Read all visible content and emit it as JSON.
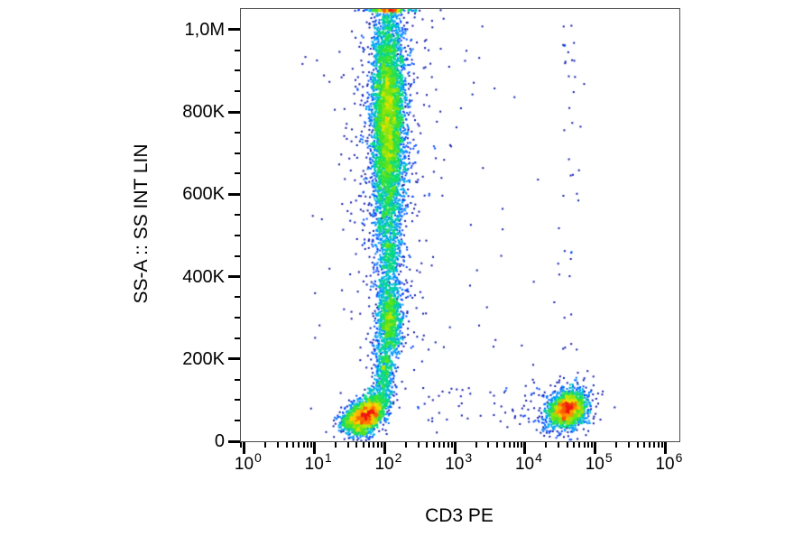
{
  "figure": {
    "background": "#ffffff",
    "plot_border_color": "#4d4d4d",
    "tick_color": "#000000",
    "text_color": "#000000"
  },
  "chart_data": {
    "type": "scatter",
    "subtype": "flow-cytometry-pseudocolor-density-plot",
    "title": "",
    "xlabel": "CD3 PE",
    "ylabel": "SS-A :: SS INT LIN",
    "x_scale": "log10",
    "y_scale": "linear",
    "x_range_log10": [
      -0.05,
      6.2
    ],
    "y_range": [
      0,
      1050000
    ],
    "x_ticks": {
      "base": "10",
      "exponents": [
        0,
        1,
        2,
        3,
        4,
        5,
        6
      ]
    },
    "x_minor_mantissas": [
      2,
      3,
      4,
      5,
      6,
      7,
      8,
      9
    ],
    "y_ticks": [
      {
        "value": 0,
        "label": "0"
      },
      {
        "value": 200000,
        "label": "200K"
      },
      {
        "value": 400000,
        "label": "400K"
      },
      {
        "value": 600000,
        "label": "600K"
      },
      {
        "value": 800000,
        "label": "800K"
      },
      {
        "value": 1000000,
        "label": "1,0M"
      }
    ],
    "y_minor_step": 50000,
    "legend": "none",
    "grid": "off",
    "colormap": [
      {
        "t": 0.0,
        "rgb": [
          20,
          20,
          145
        ]
      },
      {
        "t": 0.13,
        "rgb": [
          0,
          40,
          255
        ]
      },
      {
        "t": 0.3,
        "rgb": [
          0,
          170,
          255
        ]
      },
      {
        "t": 0.42,
        "rgb": [
          0,
          220,
          130
        ]
      },
      {
        "t": 0.55,
        "rgb": [
          70,
          225,
          35
        ]
      },
      {
        "t": 0.68,
        "rgb": [
          190,
          230,
          0
        ]
      },
      {
        "t": 0.78,
        "rgb": [
          255,
          220,
          0
        ]
      },
      {
        "t": 0.88,
        "rgb": [
          255,
          130,
          0
        ]
      },
      {
        "t": 1.0,
        "rgb": [
          240,
          25,
          15
        ]
      }
    ],
    "populations": [
      {
        "name": "cd3neg-granulocytes-high-ssc",
        "n": 5200,
        "x_log_mean": 2.05,
        "x_log_sigma": 0.12,
        "y_mean": 790000,
        "y_sigma": 150000,
        "rho": 0
      },
      {
        "name": "cd3neg-granulocytes-wide-tail",
        "n": 450,
        "x_log_mean": 2.05,
        "x_log_sigma": 0.3,
        "y_mean": 760000,
        "y_sigma": 185000,
        "rho": 0
      },
      {
        "name": "cd3neg-band-mid",
        "n": 600,
        "x_log_mean": 2.06,
        "x_log_sigma": 0.095,
        "y_mean": 450000,
        "y_sigma": 70000,
        "rho": 0
      },
      {
        "name": "cd3neg-monocytes",
        "n": 850,
        "x_log_mean": 2.08,
        "x_log_sigma": 0.085,
        "y_mean": 290000,
        "y_sigma": 45000,
        "rho": 0
      },
      {
        "name": "cd3neg-monocytes-wide",
        "n": 160,
        "x_log_mean": 2.07,
        "x_log_sigma": 0.22,
        "y_mean": 300000,
        "y_sigma": 70000,
        "rho": 0
      },
      {
        "name": "cd3neg-band-stem",
        "n": 480,
        "x_log_mean": 1.99,
        "x_log_sigma": 0.075,
        "y_mean": 170000,
        "y_sigma": 45000,
        "rho": 0
      },
      {
        "name": "cd3neg-lymphocytes",
        "n": 1900,
        "x_log_mean": 1.76,
        "x_log_sigma": 0.13,
        "y_mean": 65000,
        "y_sigma": 25000,
        "rho": 0.5
      },
      {
        "name": "cd3neg-lymphocytes-left-tail",
        "n": 380,
        "x_log_mean": 1.56,
        "x_log_sigma": 0.11,
        "y_mean": 58000,
        "y_sigma": 16000,
        "rho": 0.3
      },
      {
        "name": "cd3pos-t-lymphocytes",
        "n": 1900,
        "x_log_mean": 4.6,
        "x_log_sigma": 0.135,
        "y_mean": 78000,
        "y_sigma": 22000,
        "rho": 0.25
      },
      {
        "name": "cd3pos-t-lymphocytes-halo",
        "n": 180,
        "x_log_mean": 4.58,
        "x_log_sigma": 0.24,
        "y_mean": 82000,
        "y_sigma": 36000,
        "rho": 0
      },
      {
        "name": "cd3pos-high-ssc-sparse",
        "n": 42,
        "x_log_mean": 4.62,
        "x_log_sigma": 0.09,
        "y_dist": "uniform",
        "y_min": 140000,
        "y_max": 1040000
      },
      {
        "name": "background-debris-sparse",
        "n": 90,
        "x_dist": "uniform",
        "x_log_min": 0.8,
        "x_log_max": 4.3,
        "y_dist": "uniform",
        "y_min": 20000,
        "y_max": 1030000
      },
      {
        "name": "background-bottom-sparse",
        "n": 45,
        "x_dist": "uniform",
        "x_log_min": 2.4,
        "x_log_max": 4.1,
        "y_dist": "uniform",
        "y_min": 30000,
        "y_max": 130000
      }
    ]
  }
}
